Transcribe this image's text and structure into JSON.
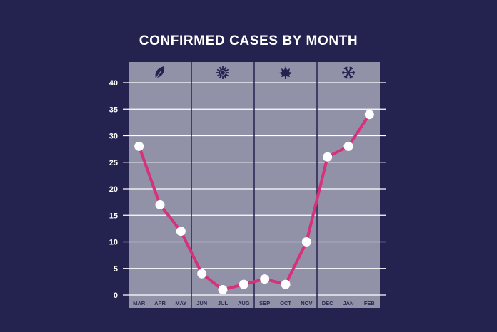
{
  "chart_data": {
    "type": "line",
    "title": "CONFIRMED CASES BY MONTH",
    "xlabel": "",
    "ylabel": "",
    "categories": [
      "MAR",
      "APR",
      "MAY",
      "JUN",
      "JUL",
      "AUG",
      "SEP",
      "OCT",
      "NOV",
      "DEC",
      "JAN",
      "FEB"
    ],
    "series": [
      {
        "values": [
          28,
          17,
          12,
          4,
          1,
          2,
          3,
          2,
          10,
          26,
          28,
          34
        ]
      }
    ],
    "ylim": [
      0,
      40
    ],
    "yticks": [
      0,
      5,
      10,
      15,
      20,
      25,
      30,
      35,
      40
    ],
    "grid": true,
    "season_groups": [
      {
        "icon": "leaf-icon",
        "months": [
          "MAR",
          "APR",
          "MAY"
        ]
      },
      {
        "icon": "sun-icon",
        "months": [
          "JUN",
          "JUL",
          "AUG"
        ]
      },
      {
        "icon": "maple-leaf-icon",
        "months": [
          "SEP",
          "OCT",
          "NOV"
        ]
      },
      {
        "icon": "snowflake-icon",
        "months": [
          "DEC",
          "JAN",
          "FEB"
        ]
      }
    ],
    "colors": {
      "background": "#242350",
      "panel": "#9191a8",
      "line": "#d6317a",
      "points": "#ffffff",
      "grid": "#ffffff",
      "dividers": "#242350"
    }
  }
}
